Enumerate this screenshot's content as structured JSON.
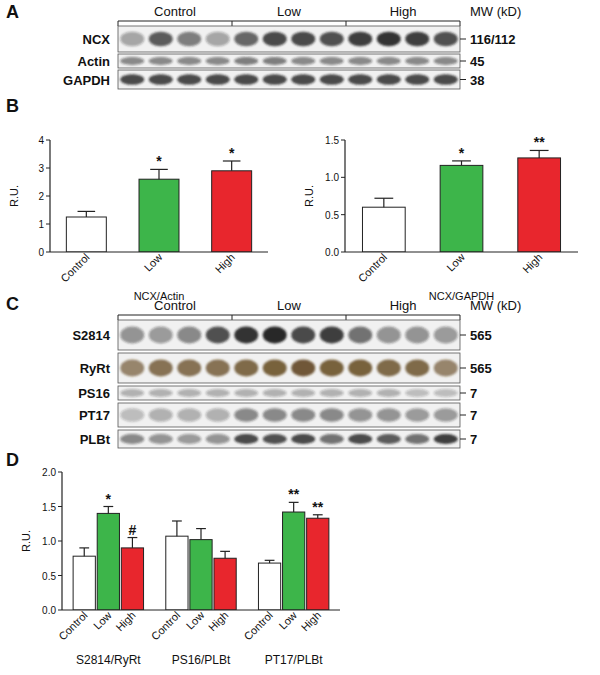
{
  "panel_labels": [
    "A",
    "B",
    "C",
    "D"
  ],
  "blots": [
    {
      "groups": [
        "Control",
        "Low",
        "High"
      ],
      "mw_header": "MW (kD)",
      "rows": [
        {
          "label": "NCX",
          "mw": "116/112",
          "color": "#1e1e1e",
          "band_intensity": [
            0.35,
            0.7,
            0.55,
            0.35,
            0.65,
            0.8,
            0.8,
            0.75,
            0.85,
            0.9,
            0.85,
            0.75
          ]
        },
        {
          "label": "Actin",
          "mw": "45",
          "color": "#1e1e1e",
          "band_intensity": [
            0.5,
            0.5,
            0.5,
            0.5,
            0.55,
            0.55,
            0.5,
            0.5,
            0.5,
            0.5,
            0.5,
            0.5
          ]
        },
        {
          "label": "GAPDH",
          "mw": "38",
          "color": "#1e1e1e",
          "band_intensity": [
            0.8,
            0.8,
            0.8,
            0.8,
            0.8,
            0.8,
            0.8,
            0.8,
            0.8,
            0.8,
            0.8,
            0.8
          ]
        }
      ]
    },
    {
      "groups": [
        "Control",
        "Low",
        "High"
      ],
      "mw_header": "MW (kD)",
      "rows": [
        {
          "label": "S2814",
          "mw": "565",
          "color": "#1e1e1e",
          "band_intensity": [
            0.45,
            0.4,
            0.5,
            0.75,
            0.9,
            0.95,
            0.8,
            0.85,
            0.6,
            0.45,
            0.45,
            0.4
          ]
        },
        {
          "label": "RyRt",
          "mw": "565",
          "color": "#5a3d14",
          "band_intensity": [
            0.6,
            0.7,
            0.7,
            0.7,
            0.75,
            0.8,
            0.85,
            0.8,
            0.8,
            0.75,
            0.75,
            0.6
          ]
        },
        {
          "label": "PS16",
          "mw": "7",
          "color": "#1e1e1e",
          "band_intensity": [
            0.3,
            0.3,
            0.3,
            0.3,
            0.3,
            0.3,
            0.3,
            0.3,
            0.3,
            0.3,
            0.25,
            0.25
          ]
        },
        {
          "label": "PT17",
          "mw": "7",
          "color": "#1e1e1e",
          "band_intensity": [
            0.25,
            0.3,
            0.3,
            0.3,
            0.5,
            0.5,
            0.5,
            0.5,
            0.45,
            0.45,
            0.4,
            0.4
          ]
        },
        {
          "label": "PLBt",
          "mw": "7",
          "color": "#1e1e1e",
          "band_intensity": [
            0.5,
            0.45,
            0.4,
            0.45,
            0.8,
            0.75,
            0.8,
            0.6,
            0.8,
            0.7,
            0.6,
            0.85
          ]
        }
      ]
    }
  ],
  "chart_data": [
    {
      "type": "bar",
      "ylabel": "R.U.",
      "xlabel": "NCX/Actin",
      "categories": [
        "Control",
        "Low",
        "High"
      ],
      "values": [
        1.25,
        2.6,
        2.9
      ],
      "errors": [
        0.2,
        0.35,
        0.35
      ],
      "significance": [
        null,
        "*",
        "*"
      ],
      "colors": [
        "#ffffff",
        "#3db54a",
        "#e8262d"
      ],
      "ylim": [
        0,
        4
      ],
      "yticks": [
        0,
        1,
        2,
        3,
        4
      ],
      "grid": false
    },
    {
      "type": "bar",
      "ylabel": "R.U.",
      "xlabel": "NCX/GAPDH",
      "categories": [
        "Control",
        "Low",
        "High"
      ],
      "values": [
        0.6,
        1.16,
        1.26
      ],
      "errors": [
        0.12,
        0.06,
        0.1
      ],
      "significance": [
        null,
        "*",
        "**"
      ],
      "colors": [
        "#ffffff",
        "#3db54a",
        "#e8262d"
      ],
      "ylim": [
        0,
        1.5
      ],
      "yticks": [
        {
          "value": 0,
          "label": "0.0"
        },
        {
          "value": 0.5,
          "label": "0.5"
        },
        {
          "value": 1,
          "label": "1.0"
        },
        {
          "value": 1.5,
          "label": "1.5"
        }
      ],
      "grid": false
    },
    {
      "type": "bar",
      "ylabel": "R.U.",
      "categories": [
        "S2814/RyRt",
        "PS16/PLBt",
        "PT17/PLBt"
      ],
      "series": [
        {
          "name": "Control",
          "color": "#ffffff",
          "values": [
            0.78,
            1.07,
            0.68
          ],
          "errors": [
            0.12,
            0.22,
            0.04
          ],
          "significance": [
            null,
            null,
            null
          ]
        },
        {
          "name": "Low",
          "color": "#3db54a",
          "values": [
            1.4,
            1.02,
            1.42
          ],
          "errors": [
            0.1,
            0.16,
            0.14
          ],
          "significance": [
            "*",
            null,
            "**"
          ]
        },
        {
          "name": "High",
          "color": "#e8262d",
          "values": [
            0.9,
            0.75,
            1.33
          ],
          "errors": [
            0.15,
            0.1,
            0.05
          ],
          "significance": [
            "#",
            null,
            "**"
          ]
        }
      ],
      "ylim": [
        0,
        2
      ],
      "yticks": [
        {
          "value": 0,
          "label": "0.0"
        },
        {
          "value": 0.5,
          "label": "0.5"
        },
        {
          "value": 1,
          "label": "1.0"
        },
        {
          "value": 1.5,
          "label": "1.5"
        },
        {
          "value": 2,
          "label": "2.0"
        }
      ],
      "grid": false
    }
  ]
}
